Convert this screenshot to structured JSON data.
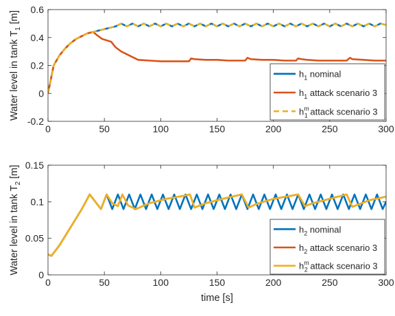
{
  "chart_data": [
    {
      "type": "line",
      "xlabel": "",
      "ylabel": "Water level in tank T",
      "ylabel_sub": "1",
      "ylabel_unit": " [m]",
      "xlim": [
        0,
        300
      ],
      "ylim": [
        -0.2,
        0.6
      ],
      "xticks": [
        0,
        50,
        100,
        150,
        200,
        250,
        300
      ],
      "yticks": [
        -0.2,
        0,
        0.2,
        0.4,
        0.6
      ],
      "ytick_labels": [
        "-0.2",
        "0",
        "0.2",
        "0.4",
        "0.6"
      ],
      "grid": false,
      "legend_position": "bottom-right",
      "series": [
        {
          "name": "h_1 nominal",
          "legend": {
            "base": "h",
            "sub": "1",
            "sup": "",
            "rest": " nominal"
          },
          "color": "#0072BD",
          "dash": false,
          "x": [
            0,
            5,
            10,
            15,
            20,
            25,
            30,
            35,
            40,
            45,
            50,
            55,
            60,
            65,
            70,
            75,
            80,
            85,
            90,
            95,
            100,
            105,
            110,
            115,
            120,
            125,
            130,
            135,
            140,
            145,
            150,
            155,
            160,
            165,
            170,
            175,
            180,
            185,
            190,
            195,
            200,
            205,
            210,
            215,
            220,
            225,
            230,
            235,
            240,
            245,
            250,
            255,
            260,
            265,
            270,
            275,
            280,
            285,
            290,
            295,
            300
          ],
          "y": [
            0.0,
            0.2,
            0.27,
            0.32,
            0.36,
            0.39,
            0.41,
            0.43,
            0.44,
            0.45,
            0.46,
            0.47,
            0.48,
            0.5,
            0.48,
            0.5,
            0.48,
            0.5,
            0.48,
            0.5,
            0.48,
            0.5,
            0.48,
            0.5,
            0.48,
            0.5,
            0.48,
            0.5,
            0.48,
            0.5,
            0.48,
            0.5,
            0.48,
            0.5,
            0.48,
            0.5,
            0.48,
            0.5,
            0.48,
            0.5,
            0.48,
            0.5,
            0.48,
            0.5,
            0.48,
            0.5,
            0.48,
            0.5,
            0.48,
            0.5,
            0.48,
            0.5,
            0.48,
            0.5,
            0.48,
            0.5,
            0.48,
            0.5,
            0.48,
            0.5,
            0.49
          ]
        },
        {
          "name": "h_1 attack scenario 3",
          "legend": {
            "base": "h",
            "sub": "1",
            "sup": "",
            "rest": " attack scenario 3"
          },
          "color": "#D95319",
          "dash": false,
          "x": [
            0,
            5,
            10,
            15,
            20,
            25,
            30,
            35,
            40,
            43,
            48,
            52,
            56,
            60,
            65,
            70,
            75,
            80,
            90,
            100,
            110,
            120,
            125,
            127,
            130,
            140,
            150,
            160,
            170,
            175,
            177,
            180,
            190,
            200,
            210,
            220,
            222,
            225,
            230,
            240,
            250,
            260,
            265,
            268,
            270,
            280,
            290,
            300
          ],
          "y": [
            0.0,
            0.2,
            0.27,
            0.32,
            0.36,
            0.39,
            0.41,
            0.43,
            0.44,
            0.42,
            0.39,
            0.38,
            0.37,
            0.33,
            0.3,
            0.28,
            0.26,
            0.24,
            0.235,
            0.23,
            0.23,
            0.23,
            0.23,
            0.25,
            0.245,
            0.24,
            0.24,
            0.235,
            0.235,
            0.235,
            0.255,
            0.245,
            0.24,
            0.24,
            0.235,
            0.235,
            0.25,
            0.245,
            0.24,
            0.235,
            0.235,
            0.235,
            0.235,
            0.255,
            0.245,
            0.24,
            0.235,
            0.235
          ]
        },
        {
          "name": "h_1^m attack scenario 3",
          "legend": {
            "base": "h",
            "sub": "1",
            "sup": "m",
            "rest": " attack scenario 3"
          },
          "color": "#EDB120",
          "dash": true,
          "x": [
            0,
            5,
            10,
            15,
            20,
            25,
            30,
            35,
            40,
            45,
            50,
            55,
            60,
            65,
            70,
            75,
            80,
            85,
            90,
            95,
            100,
            105,
            110,
            115,
            120,
            125,
            130,
            135,
            140,
            145,
            150,
            155,
            160,
            165,
            170,
            175,
            180,
            185,
            190,
            195,
            200,
            205,
            210,
            215,
            220,
            225,
            230,
            235,
            240,
            245,
            250,
            255,
            260,
            265,
            270,
            275,
            280,
            285,
            290,
            295,
            300
          ],
          "y": [
            0.0,
            0.2,
            0.27,
            0.32,
            0.36,
            0.39,
            0.41,
            0.43,
            0.44,
            0.45,
            0.46,
            0.47,
            0.48,
            0.5,
            0.48,
            0.5,
            0.48,
            0.5,
            0.48,
            0.5,
            0.48,
            0.5,
            0.48,
            0.5,
            0.48,
            0.5,
            0.48,
            0.5,
            0.48,
            0.5,
            0.48,
            0.5,
            0.48,
            0.5,
            0.48,
            0.5,
            0.48,
            0.5,
            0.48,
            0.5,
            0.48,
            0.5,
            0.48,
            0.5,
            0.48,
            0.5,
            0.48,
            0.5,
            0.48,
            0.5,
            0.48,
            0.5,
            0.48,
            0.5,
            0.48,
            0.5,
            0.48,
            0.5,
            0.48,
            0.5,
            0.49
          ]
        }
      ]
    },
    {
      "type": "line",
      "xlabel": "time [s]",
      "ylabel": "Water level in tank T",
      "ylabel_sub": "2",
      "ylabel_unit": " [m]",
      "xlim": [
        0,
        300
      ],
      "ylim": [
        0,
        0.15
      ],
      "xticks": [
        0,
        50,
        100,
        150,
        200,
        250,
        300
      ],
      "yticks": [
        0,
        0.05,
        0.1,
        0.15
      ],
      "ytick_labels": [
        "0",
        "0.05",
        "0.1",
        "0.15"
      ],
      "grid": false,
      "legend_position": "bottom-right",
      "series": [
        {
          "name": "h_2 nominal",
          "legend": {
            "base": "h",
            "sub": "2",
            "sup": "",
            "rest": " nominal"
          },
          "color": "#0072BD",
          "dash": false,
          "x": [
            0,
            3,
            10,
            20,
            30,
            37,
            42,
            47,
            52,
            57,
            62,
            67,
            72,
            77,
            82,
            87,
            92,
            97,
            102,
            107,
            112,
            117,
            122,
            127,
            132,
            137,
            142,
            147,
            152,
            157,
            162,
            167,
            172,
            177,
            182,
            187,
            192,
            197,
            202,
            207,
            212,
            217,
            222,
            227,
            232,
            237,
            242,
            247,
            252,
            257,
            262,
            267,
            272,
            277,
            282,
            287,
            292,
            297,
            300
          ],
          "y": [
            0.028,
            0.026,
            0.04,
            0.065,
            0.09,
            0.11,
            0.1,
            0.09,
            0.11,
            0.09,
            0.11,
            0.09,
            0.11,
            0.09,
            0.11,
            0.09,
            0.11,
            0.09,
            0.11,
            0.09,
            0.11,
            0.09,
            0.11,
            0.09,
            0.11,
            0.09,
            0.11,
            0.09,
            0.11,
            0.09,
            0.11,
            0.09,
            0.11,
            0.09,
            0.11,
            0.09,
            0.11,
            0.09,
            0.11,
            0.09,
            0.11,
            0.09,
            0.11,
            0.09,
            0.11,
            0.09,
            0.11,
            0.09,
            0.11,
            0.09,
            0.11,
            0.09,
            0.11,
            0.09,
            0.11,
            0.09,
            0.11,
            0.09,
            0.1
          ]
        },
        {
          "name": "h_2 attack scenario 3",
          "legend": {
            "base": "h",
            "sub": "2",
            "sup": "",
            "rest": " attack scenario 3"
          },
          "color": "#D95319",
          "dash": false,
          "x": [
            0,
            3,
            10,
            20,
            30,
            37,
            42,
            47,
            52,
            57,
            62,
            66,
            71,
            78,
            90,
            105,
            120,
            126,
            130,
            140,
            155,
            172,
            178,
            185,
            200,
            215,
            222,
            228,
            235,
            250,
            265,
            270,
            275,
            285,
            300
          ],
          "y": [
            0.028,
            0.026,
            0.04,
            0.065,
            0.09,
            0.11,
            0.1,
            0.09,
            0.11,
            0.098,
            0.094,
            0.11,
            0.095,
            0.09,
            0.098,
            0.104,
            0.108,
            0.11,
            0.092,
            0.098,
            0.104,
            0.11,
            0.092,
            0.097,
            0.104,
            0.108,
            0.11,
            0.094,
            0.098,
            0.104,
            0.11,
            0.093,
            0.096,
            0.102,
            0.107
          ]
        },
        {
          "name": "h_2^m attack scenario 3",
          "legend": {
            "base": "h",
            "sub": "2",
            "sup": "m",
            "rest": " attack scenario 3"
          },
          "color": "#EDB120",
          "dash": false,
          "x": [
            0,
            3,
            10,
            20,
            30,
            37,
            42,
            47,
            52,
            57,
            62,
            66,
            71,
            78,
            90,
            105,
            120,
            126,
            130,
            140,
            155,
            172,
            178,
            185,
            200,
            215,
            222,
            228,
            235,
            250,
            265,
            270,
            275,
            285,
            300
          ],
          "y": [
            0.028,
            0.026,
            0.04,
            0.065,
            0.09,
            0.11,
            0.1,
            0.09,
            0.11,
            0.098,
            0.094,
            0.11,
            0.095,
            0.09,
            0.098,
            0.104,
            0.108,
            0.11,
            0.092,
            0.098,
            0.104,
            0.11,
            0.092,
            0.097,
            0.104,
            0.108,
            0.11,
            0.094,
            0.098,
            0.104,
            0.11,
            0.093,
            0.096,
            0.102,
            0.107
          ]
        }
      ]
    }
  ]
}
